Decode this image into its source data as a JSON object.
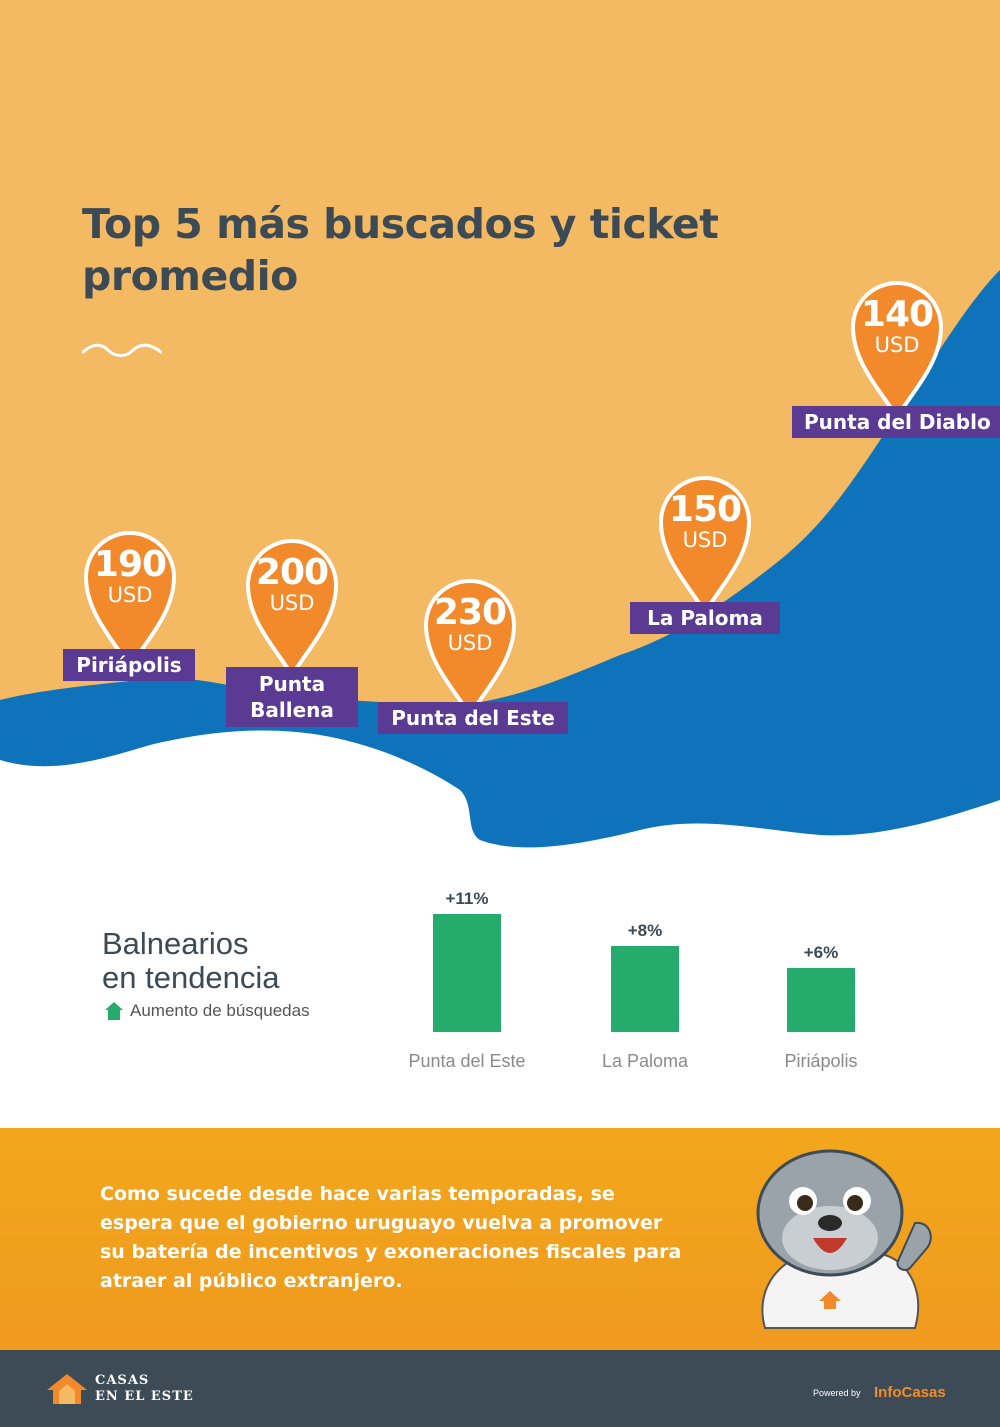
{
  "header": {
    "title_line1": "Top 5 más buscados y ticket",
    "title_line2": "promedio"
  },
  "pins": [
    {
      "value": "190",
      "currency": "USD",
      "place": "Piriápolis"
    },
    {
      "value": "200",
      "currency": "USD",
      "place_line1": "Punta",
      "place_line2": "Ballena"
    },
    {
      "value": "230",
      "currency": "USD",
      "place": "Punta del Este"
    },
    {
      "value": "150",
      "currency": "USD",
      "place": "La Paloma"
    },
    {
      "value": "140",
      "currency": "USD",
      "place": "Punta del Diablo"
    }
  ],
  "trend": {
    "title_line1": "Balnearios",
    "title_line2": "en tendencia",
    "legend": "Aumento de búsquedas",
    "bars": [
      {
        "label": "Punta del Este",
        "pct": "+11%",
        "value": 11
      },
      {
        "label": "La Paloma",
        "pct": "+8%",
        "value": 8
      },
      {
        "label": "Piriápolis",
        "pct": "+6%",
        "value": 6
      }
    ]
  },
  "banner": {
    "text": "Como sucede desde hace varias temporadas, se espera que el gobierno uruguayo vuelva a promover su batería de incentivos y exoneraciones fiscales para atraer al público extranjero."
  },
  "footer": {
    "logo_line1": "CASAS",
    "logo_line2": "EN EL ESTE",
    "powered_by": "Powered by",
    "brand": "InfoCasas"
  },
  "colors": {
    "sand": "#f4b963",
    "sea": "#0f73bc",
    "pin": "#f28a2c",
    "label": "#5b3a94",
    "bar": "#25ab6c",
    "banner": "#f2a71c",
    "footer": "#3d4b56"
  }
}
